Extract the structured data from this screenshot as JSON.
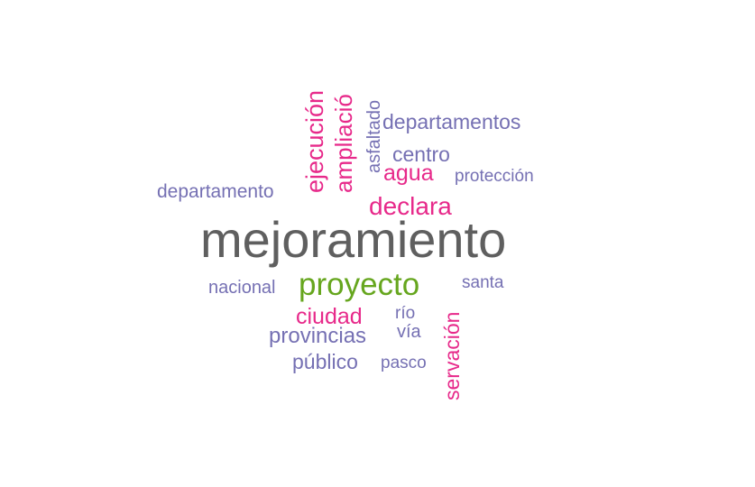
{
  "colors": {
    "gray": "#5f5f5f",
    "green": "#66a61e",
    "pink": "#e7298a",
    "purple": "#7570b3"
  },
  "words": [
    {
      "text": "mejoramiento",
      "color": "gray"
    },
    {
      "text": "proyecto",
      "color": "green"
    },
    {
      "text": "ejecución",
      "color": "pink"
    },
    {
      "text": "ampliació",
      "color": "pink"
    },
    {
      "text": "asfaltado",
      "color": "purple"
    },
    {
      "text": "departamentos",
      "color": "purple"
    },
    {
      "text": "centro",
      "color": "purple"
    },
    {
      "text": "agua",
      "color": "pink"
    },
    {
      "text": "protección",
      "color": "purple"
    },
    {
      "text": "departamento",
      "color": "purple"
    },
    {
      "text": "declara",
      "color": "pink"
    },
    {
      "text": "nacional",
      "color": "purple"
    },
    {
      "text": "santa",
      "color": "purple"
    },
    {
      "text": "servación",
      "color": "pink"
    },
    {
      "text": "ciudad",
      "color": "pink"
    },
    {
      "text": "río",
      "color": "purple"
    },
    {
      "text": "provincias",
      "color": "purple"
    },
    {
      "text": "vía",
      "color": "purple"
    },
    {
      "text": "público",
      "color": "purple"
    },
    {
      "text": "pasco",
      "color": "purple"
    }
  ]
}
